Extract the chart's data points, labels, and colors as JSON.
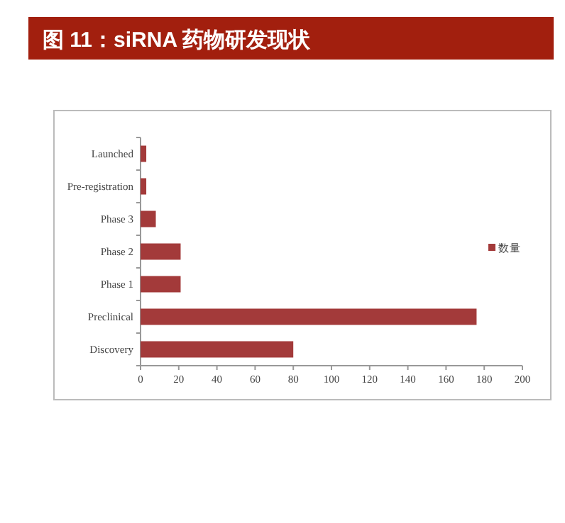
{
  "chart_data": {
    "type": "bar",
    "orientation": "horizontal",
    "title": "图 11：siRNA 药物研发现状",
    "categories": [
      "Launched",
      "Pre-registration",
      "Phase 3",
      "Phase 2",
      "Phase 1",
      "Preclinical",
      "Discovery"
    ],
    "series": [
      {
        "name": "数量",
        "color": "#a33a3a",
        "values": [
          3,
          3,
          8,
          21,
          21,
          176,
          80
        ]
      }
    ],
    "xlim": [
      0,
      200
    ],
    "xticks": [
      0,
      20,
      40,
      60,
      80,
      100,
      120,
      140,
      160,
      180,
      200
    ],
    "grid": false,
    "legend": "right"
  }
}
